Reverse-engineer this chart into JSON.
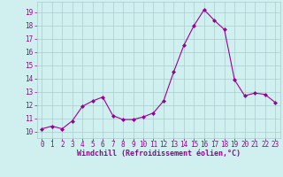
{
  "x": [
    0,
    1,
    2,
    3,
    4,
    5,
    6,
    7,
    8,
    9,
    10,
    11,
    12,
    13,
    14,
    15,
    16,
    17,
    18,
    19,
    20,
    21,
    22,
    23
  ],
  "y": [
    10.2,
    10.4,
    10.2,
    10.8,
    11.9,
    12.3,
    12.6,
    11.2,
    10.9,
    10.9,
    11.1,
    11.4,
    12.3,
    14.5,
    16.5,
    18.0,
    19.2,
    18.4,
    17.7,
    13.9,
    12.7,
    12.9,
    12.8,
    12.2
  ],
  "line_color": "#990099",
  "marker": "D",
  "marker_size": 2,
  "bg_color": "#cff0ee",
  "grid_color": "#aacccc",
  "xlabel": "Windchill (Refroidissement éolien,°C)",
  "xlabel_color": "#990099",
  "tick_color": "#990099",
  "label_color": "#990099",
  "ylim": [
    9.5,
    19.8
  ],
  "xlim": [
    -0.5,
    23.5
  ],
  "yticks": [
    10,
    11,
    12,
    13,
    14,
    15,
    16,
    17,
    18,
    19
  ],
  "xticks": [
    0,
    1,
    2,
    3,
    4,
    5,
    6,
    7,
    8,
    9,
    10,
    11,
    12,
    13,
    14,
    15,
    16,
    17,
    18,
    19,
    20,
    21,
    22,
    23
  ],
  "xlabel_fontsize": 6.0,
  "tick_fontsize": 5.5
}
